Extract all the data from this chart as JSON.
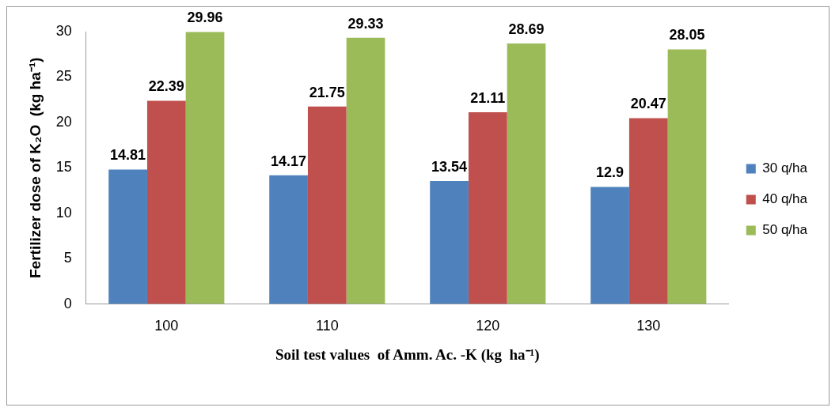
{
  "chart_data": {
    "type": "bar",
    "xlabel": "Soil test values  of Amm. Ac. -K (kg  ha⁻¹)",
    "ylabel": "Fertilizer dose of K₂O  (kg ha⁻¹)",
    "categories": [
      "100",
      "110",
      "120",
      "130"
    ],
    "series": [
      {
        "name": "30 q/ha",
        "color": "#4f81bd",
        "values": [
          14.81,
          14.17,
          13.54,
          12.9
        ]
      },
      {
        "name": "40 q/ha",
        "color": "#c0504d",
        "values": [
          22.39,
          21.75,
          21.11,
          20.47
        ]
      },
      {
        "name": "50 q/ha",
        "color": "#9bbb59",
        "values": [
          29.96,
          29.33,
          28.69,
          28.05
        ]
      }
    ],
    "ylim": [
      0,
      30
    ],
    "yticks": [
      0,
      5,
      10,
      15,
      20,
      25,
      30
    ],
    "grid": false,
    "legend": "right",
    "data_labels": true
  }
}
